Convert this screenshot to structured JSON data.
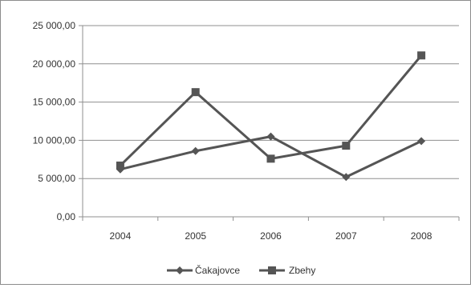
{
  "chart_data": {
    "type": "line",
    "categories": [
      "2004",
      "2005",
      "2006",
      "2007",
      "2008"
    ],
    "series": [
      {
        "name": "Čakajovce",
        "marker": "diamond",
        "values": [
          6200,
          8600,
          10500,
          5200,
          9900
        ]
      },
      {
        "name": "Zbehy",
        "marker": "square",
        "values": [
          6700,
          16300,
          7600,
          9300,
          21100
        ]
      }
    ],
    "y_ticks": [
      "0,00",
      "5 000,00",
      "10 000,00",
      "15 000,00",
      "20 000,00",
      "25 000,00"
    ],
    "ylim": [
      0,
      25000
    ],
    "y_step": 5000,
    "grid": "horizontal",
    "legend": "bottom",
    "line_color": "#555555"
  }
}
